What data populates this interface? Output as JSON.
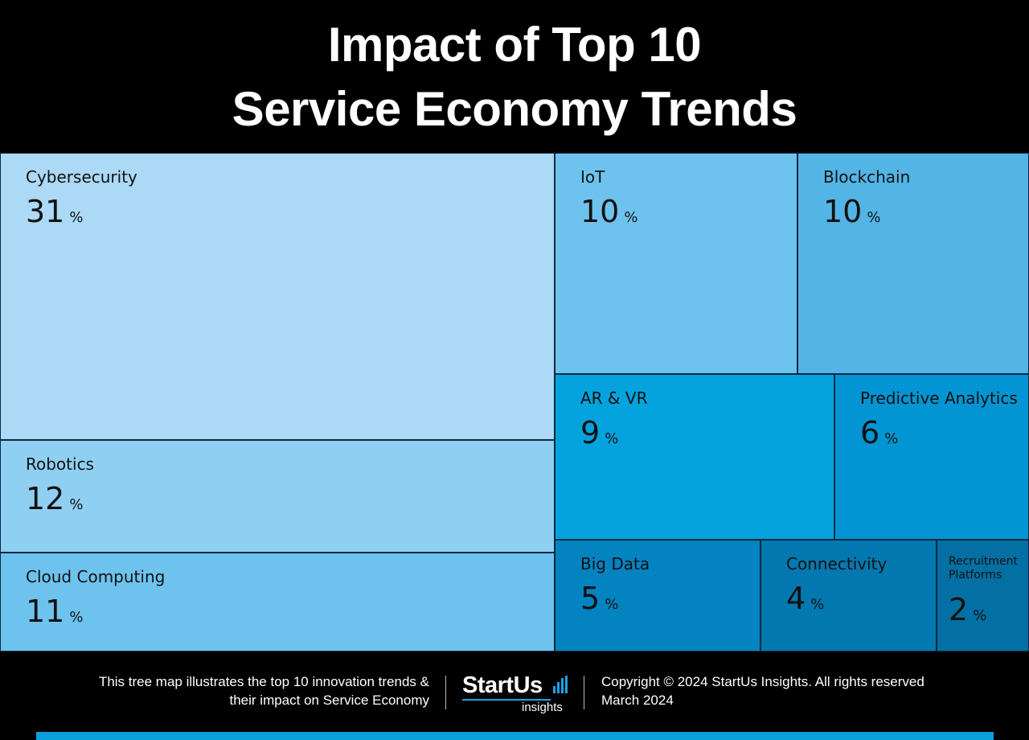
{
  "title_line1": "Impact of Top 10",
  "title_line2": "Service Economy Trends",
  "chart_data": {
    "type": "treemap",
    "unit": "%",
    "items": [
      {
        "name": "Cybersecurity",
        "value": 31,
        "color": "#acd9f6"
      },
      {
        "name": "Robotics",
        "value": 12,
        "color": "#8fcff2"
      },
      {
        "name": "Cloud Computing",
        "value": 11,
        "color": "#6ec3ee"
      },
      {
        "name": "IoT",
        "value": 10,
        "color": "#6ec3ee"
      },
      {
        "name": "Blockchain",
        "value": 10,
        "color": "#53b4e6"
      },
      {
        "name": "AR & VR",
        "value": 9,
        "color": "#04a3dd"
      },
      {
        "name": "Predictive Analytics",
        "value": 6,
        "color": "#0394d3"
      },
      {
        "name": "Big Data",
        "value": 5,
        "color": "#0383c0"
      },
      {
        "name": "Connectivity",
        "value": 4,
        "color": "#0378b0"
      },
      {
        "name": "Recruitment Platforms",
        "value": 2,
        "color": "#036fa2"
      }
    ]
  },
  "footer": {
    "description_line1": "This tree map illustrates the top 10 innovation trends &",
    "description_line2": "their impact on Service Economy",
    "logo_word": "StartUs",
    "logo_sub": "insights",
    "copyright": "Copyright © 2024 StartUs Insights. All rights reserved",
    "date": "March 2024",
    "accent_color": "#0aa0dc"
  }
}
